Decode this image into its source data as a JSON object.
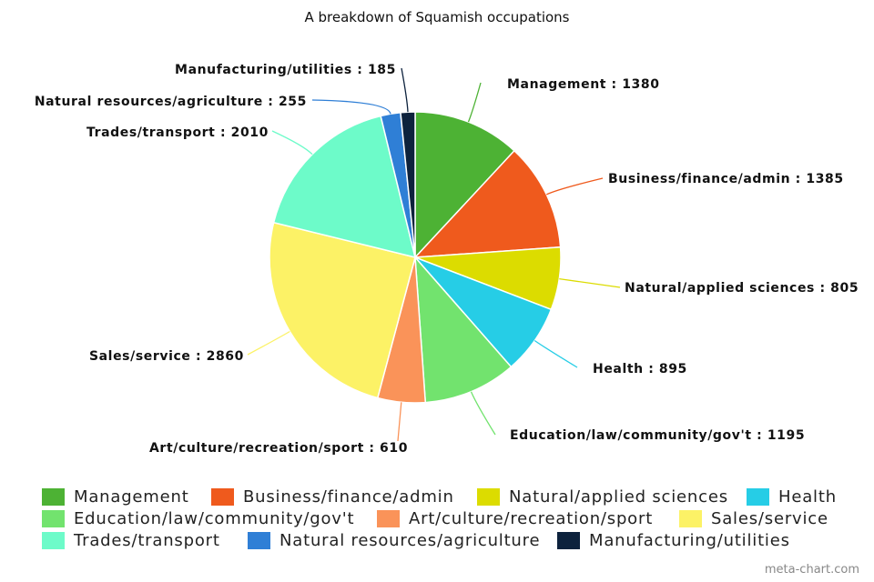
{
  "chart_data": {
    "type": "pie",
    "title": "A breakdown of Squamish occupations",
    "categories": [
      "Management",
      "Business/finance/admin",
      "Natural/applied sciences",
      "Health",
      "Education/law/community/gov't",
      "Art/culture/recreation/sport",
      "Sales/service",
      "Trades/transport",
      "Natural resources/agriculture",
      "Manufacturing/utilities"
    ],
    "values": [
      1380,
      1385,
      805,
      895,
      1195,
      610,
      2860,
      2010,
      255,
      185
    ],
    "colors": [
      "#4db234",
      "#ef5a1d",
      "#dcdc00",
      "#26cde6",
      "#72e36e",
      "#fa9359",
      "#fcf266",
      "#6dfbc9",
      "#2f7fd6",
      "#0d223d"
    ],
    "slice_labels": [
      "Management : 1380",
      "Business/finance/admin : 1385",
      "Natural/applied sciences : 805",
      "Health : 895",
      "Education/law/community/gov't : 1195",
      "Art/culture/recreation/sport : 610",
      "Sales/service : 2860",
      "Trades/transport : 2010",
      "Natural resources/agriculture : 255",
      "Manufacturing/utilities : 185"
    ],
    "legend_placement": "bottom"
  },
  "watermark": "meta-chart.com"
}
